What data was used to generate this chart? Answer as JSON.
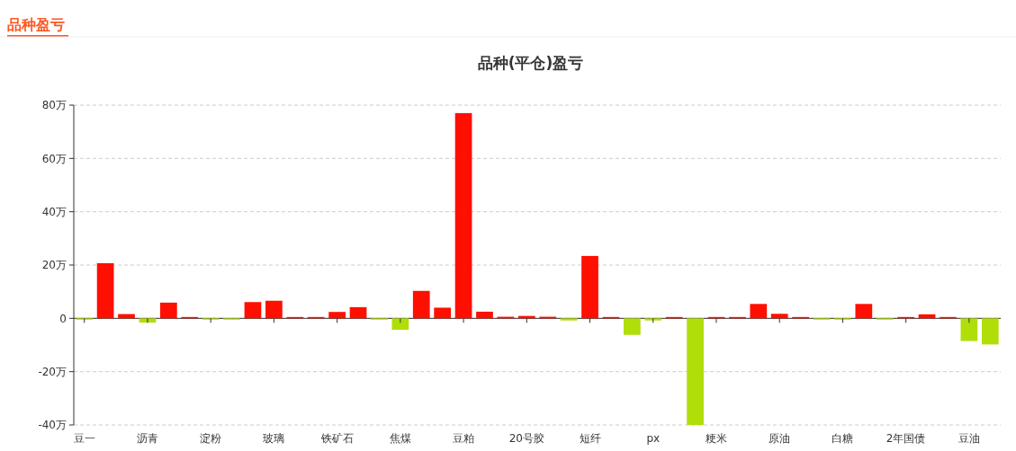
{
  "chart_data": {
    "type": "bar",
    "title": "品种(平仓)盈亏",
    "annotations": [
      "品种盈亏"
    ],
    "categories": [
      "豆一",
      null,
      null,
      "沥青",
      null,
      null,
      "淀粉",
      null,
      null,
      "玻璃",
      null,
      null,
      "铁矿石",
      null,
      null,
      "焦煤",
      null,
      null,
      "豆粕",
      null,
      null,
      "20号胶",
      null,
      null,
      "短纤",
      null,
      null,
      "px",
      null,
      null,
      "粳米",
      null,
      null,
      "原油",
      null,
      null,
      "白糖",
      null,
      null,
      "2年国债",
      null,
      null,
      "豆油",
      null
    ],
    "values": [
      -0.2,
      20.7,
      1.6,
      -1.6,
      5.9,
      0.1,
      -0.2,
      -0.2,
      6.1,
      6.6,
      0,
      0,
      2.4,
      4.2,
      -0.3,
      -4.3,
      10.3,
      4.0,
      77,
      2.5,
      0.6,
      0.9,
      0.6,
      -0.8,
      23.4,
      0,
      -6.2,
      -0.8,
      0,
      -40,
      0.5,
      0.1,
      5.4,
      1.7,
      0,
      -0.2,
      -0.4,
      5.4,
      -0.3,
      0.5,
      1.5,
      0.1,
      -8.5,
      -9.8
    ],
    "colors": [
      "#b0de09",
      "#ff0f00",
      "#ff0f00",
      "#b0de09",
      "#ff0f00",
      "#ff0f00",
      "#b0de09",
      "#b0de09",
      "#ff0f00",
      "#ff0f00",
      "#ff0f00",
      "#ff0f00",
      "#ff0f00",
      "#ff0f00",
      "#b0de09",
      "#b0de09",
      "#ff0f00",
      "#ff0f00",
      "#ff0f00",
      "#ff0f00",
      "#ff0f00",
      "#ff0f00",
      "#ff0f00",
      "#b0de09",
      "#ff0f00",
      "#ff0f00",
      "#b0de09",
      "#b0de09",
      "#ff0f00",
      "#b0de09",
      "#ff0f00",
      "#ff0f00",
      "#ff0f00",
      "#ff0f00",
      "#ff0f00",
      "#b0de09",
      "#b0de09",
      "#ff0f00",
      "#b0de09",
      "#ff0f00",
      "#ff0f00",
      "#ff0f00",
      "#b0de09",
      "#b0de09"
    ],
    "ylim": [
      -40,
      80
    ],
    "yticks": [
      {
        "value": -40,
        "label": "-40万"
      },
      {
        "value": -20,
        "label": "-20万"
      },
      {
        "value": 0,
        "label": "0"
      },
      {
        "value": 20,
        "label": "20万"
      },
      {
        "value": 40,
        "label": "40万"
      },
      {
        "value": 60,
        "label": "60万"
      },
      {
        "value": 80,
        "label": "80万"
      }
    ],
    "grid": "y"
  }
}
